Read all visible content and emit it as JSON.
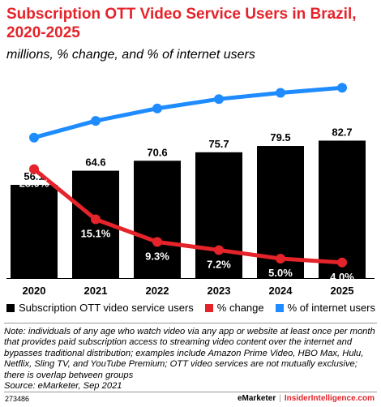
{
  "header": {
    "title": "Subscription OTT Video Service Users in Brazil, 2020-2025",
    "subtitle": "millions, % change, and % of internet users"
  },
  "colors": {
    "title": "#e4232a",
    "bar": "#000000",
    "change_line": "#e4232a",
    "internet_line": "#1e8bff"
  },
  "chart_data": {
    "type": "bar",
    "categories": [
      "2020",
      "2021",
      "2022",
      "2023",
      "2024",
      "2025"
    ],
    "series": [
      {
        "name": "Subscription OTT video service users",
        "type": "bar",
        "values": [
          56.1,
          64.6,
          70.6,
          75.7,
          79.5,
          82.7
        ],
        "labels": [
          "56.1",
          "64.6",
          "70.6",
          "75.7",
          "79.5",
          "82.7"
        ]
      },
      {
        "name": "% change",
        "type": "line",
        "values": [
          28.0,
          15.1,
          9.3,
          7.2,
          5.0,
          4.0
        ],
        "labels": [
          "28.0%",
          "15.1%",
          "9.3%",
          "7.2%",
          "5.0%",
          "4.0%"
        ]
      },
      {
        "name": "% of internet users",
        "type": "line",
        "values": [
          36.1,
          40.4,
          43.6,
          46.0,
          47.6,
          48.9
        ],
        "labels": [
          "36.1%",
          "40.4%",
          "43.6%",
          "46.0%",
          "47.6%",
          "48.9%"
        ]
      }
    ],
    "bar_ylim": [
      0,
      90
    ],
    "line_ylim": [
      0,
      60
    ],
    "legend_position": "bottom"
  },
  "legend": {
    "items": [
      {
        "label": "Subscription OTT video service users",
        "color": "#000000"
      },
      {
        "label": "% change",
        "color": "#e4232a"
      },
      {
        "label": "% of internet users",
        "color": "#1e8bff"
      }
    ]
  },
  "note": {
    "text": "Note: individuals of any age who watch video via any app or website at least once per month that provides paid subscription access to streaming video content over the internet and bypasses traditional distribution; examples include Amazon Prime Video, HBO Max, Hulu, Netflix, Sling TV, and YouTube Premium; OTT video services are not mutually exclusive; there is overlap between groups",
    "source": "Source: eMarketer, Sep 2021"
  },
  "footer": {
    "id": "273486",
    "brand_a": "eMarketer",
    "separator": "|",
    "brand_b": "InsiderIntelligence.com"
  }
}
